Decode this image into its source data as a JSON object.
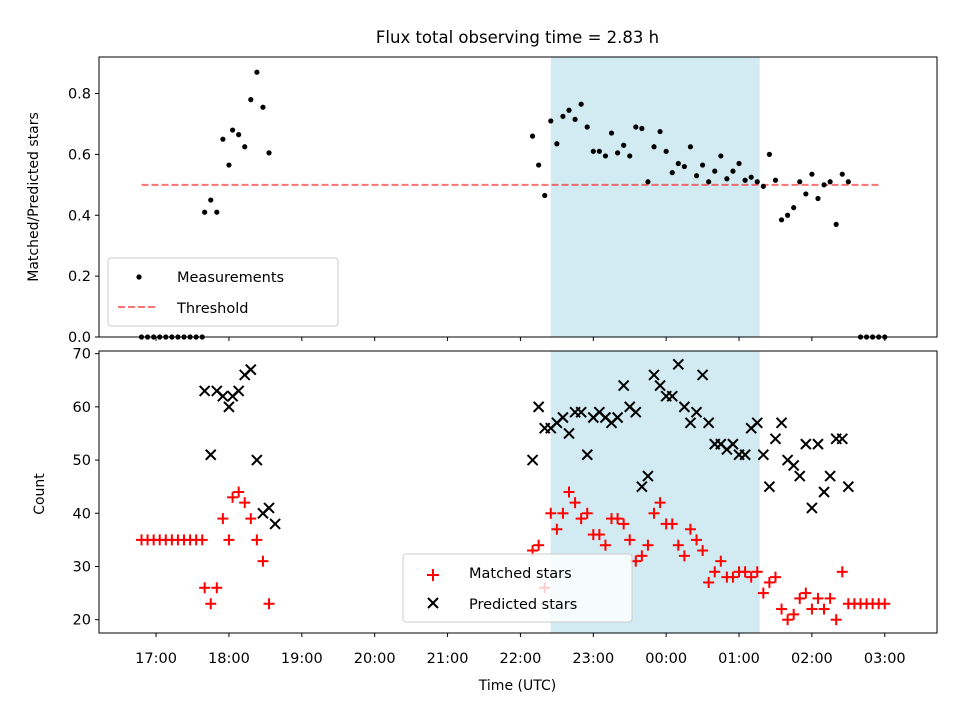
{
  "chart_data": [
    {
      "type": "scatter",
      "title": "Flux total observing time = 2.83 h",
      "xlabel": "",
      "ylabel": "Matched/Predicted stars",
      "xlim": [
        "16:13",
        "03:43"
      ],
      "ylim": [
        0,
        0.92
      ],
      "yticks": [
        "0.0",
        "0.2",
        "0.4",
        "0.6",
        "0.8"
      ],
      "ytick_values": [
        0,
        0.2,
        0.4,
        0.6,
        0.8
      ],
      "grid": false,
      "legend_position": "lower-left",
      "shaded_region": {
        "x_start": "22:25",
        "x_end": "01:17",
        "color": "#add8e6"
      },
      "threshold": {
        "name": "Threshold",
        "value": 0.5,
        "x_start": "16:48",
        "x_end": "02:55",
        "color": "#ff0000",
        "style": "dashed"
      },
      "series": [
        {
          "name": "Measurements",
          "color": "#000000",
          "marker": "dot",
          "points": [
            [
              "16:48",
              0
            ],
            [
              "16:53",
              0
            ],
            [
              "16:58",
              0
            ],
            [
              "17:03",
              0
            ],
            [
              "17:08",
              0
            ],
            [
              "17:13",
              0
            ],
            [
              "17:18",
              0
            ],
            [
              "17:23",
              0
            ],
            [
              "17:28",
              0
            ],
            [
              "17:33",
              0
            ],
            [
              "17:38",
              0
            ],
            [
              "17:40",
              0.41
            ],
            [
              "17:45",
              0.45
            ],
            [
              "17:50",
              0.41
            ],
            [
              "17:55",
              0.65
            ],
            [
              "18:00",
              0.565
            ],
            [
              "18:03",
              0.68
            ],
            [
              "18:08",
              0.665
            ],
            [
              "18:13",
              0.625
            ],
            [
              "18:18",
              0.78
            ],
            [
              "18:23",
              0.87
            ],
            [
              "18:28",
              0.755
            ],
            [
              "18:33",
              0.605
            ],
            [
              "22:10",
              0.66
            ],
            [
              "22:15",
              0.565
            ],
            [
              "22:20",
              0.465
            ],
            [
              "22:25",
              0.71
            ],
            [
              "22:30",
              0.635
            ],
            [
              "22:35",
              0.725
            ],
            [
              "22:40",
              0.745
            ],
            [
              "22:45",
              0.715
            ],
            [
              "22:50",
              0.765
            ],
            [
              "22:55",
              0.69
            ],
            [
              "23:00",
              0.61
            ],
            [
              "23:05",
              0.61
            ],
            [
              "23:10",
              0.595
            ],
            [
              "23:15",
              0.67
            ],
            [
              "23:20",
              0.605
            ],
            [
              "23:25",
              0.63
            ],
            [
              "23:30",
              0.595
            ],
            [
              "23:35",
              0.69
            ],
            [
              "23:40",
              0.685
            ],
            [
              "23:45",
              0.51
            ],
            [
              "23:50",
              0.625
            ],
            [
              "23:55",
              0.675
            ],
            [
              "00:00",
              0.61
            ],
            [
              "00:05",
              0.54
            ],
            [
              "00:10",
              0.57
            ],
            [
              "00:15",
              0.56
            ],
            [
              "00:20",
              0.625
            ],
            [
              "00:25",
              0.53
            ],
            [
              "00:30",
              0.565
            ],
            [
              "00:35",
              0.51
            ],
            [
              "00:40",
              0.545
            ],
            [
              "00:45",
              0.595
            ],
            [
              "00:50",
              0.52
            ],
            [
              "00:55",
              0.545
            ],
            [
              "01:00",
              0.57
            ],
            [
              "01:05",
              0.515
            ],
            [
              "01:10",
              0.525
            ],
            [
              "01:15",
              0.51
            ],
            [
              "01:20",
              0.495
            ],
            [
              "01:25",
              0.6
            ],
            [
              "01:30",
              0.515
            ],
            [
              "01:35",
              0.385
            ],
            [
              "01:40",
              0.4
            ],
            [
              "01:45",
              0.425
            ],
            [
              "01:50",
              0.51
            ],
            [
              "01:55",
              0.47
            ],
            [
              "02:00",
              0.535
            ],
            [
              "02:05",
              0.455
            ],
            [
              "02:10",
              0.5
            ],
            [
              "02:15",
              0.51
            ],
            [
              "02:20",
              0.37
            ],
            [
              "02:25",
              0.535
            ],
            [
              "02:30",
              0.51
            ],
            [
              "02:40",
              0
            ],
            [
              "02:45",
              0
            ],
            [
              "02:50",
              0
            ],
            [
              "02:55",
              0
            ],
            [
              "03:00",
              0
            ]
          ]
        }
      ]
    },
    {
      "type": "scatter",
      "title": "",
      "xlabel": "Time (UTC)",
      "ylabel": "Count",
      "xlim": [
        "16:13",
        "03:43"
      ],
      "ylim": [
        17.5,
        70.5
      ],
      "xticks": [
        "17:00",
        "18:00",
        "19:00",
        "20:00",
        "21:00",
        "22:00",
        "23:00",
        "00:00",
        "01:00",
        "02:00",
        "03:00"
      ],
      "yticks": [
        "20",
        "30",
        "40",
        "50",
        "60",
        "70"
      ],
      "ytick_values": [
        20,
        30,
        40,
        50,
        60,
        70
      ],
      "grid": false,
      "legend_position": "bottom-center",
      "shaded_region": {
        "x_start": "22:25",
        "x_end": "01:17",
        "color": "#add8e6"
      },
      "series": [
        {
          "name": "Matched stars",
          "color": "#ff0000",
          "marker": "plus",
          "points": [
            [
              "16:48",
              35
            ],
            [
              "16:53",
              35
            ],
            [
              "16:58",
              35
            ],
            [
              "17:03",
              35
            ],
            [
              "17:08",
              35
            ],
            [
              "17:13",
              35
            ],
            [
              "17:18",
              35
            ],
            [
              "17:23",
              35
            ],
            [
              "17:28",
              35
            ],
            [
              "17:33",
              35
            ],
            [
              "17:38",
              35
            ],
            [
              "17:40",
              26
            ],
            [
              "17:45",
              23
            ],
            [
              "17:50",
              26
            ],
            [
              "17:55",
              39
            ],
            [
              "18:00",
              35
            ],
            [
              "18:03",
              43
            ],
            [
              "18:08",
              44
            ],
            [
              "18:13",
              42
            ],
            [
              "18:18",
              39
            ],
            [
              "18:23",
              35
            ],
            [
              "18:28",
              31
            ],
            [
              "18:33",
              23
            ],
            [
              "22:10",
              33
            ],
            [
              "22:15",
              34
            ],
            [
              "22:20",
              26
            ],
            [
              "22:25",
              40
            ],
            [
              "22:30",
              37
            ],
            [
              "22:35",
              40
            ],
            [
              "22:40",
              44
            ],
            [
              "22:45",
              42
            ],
            [
              "22:50",
              39
            ],
            [
              "22:55",
              40
            ],
            [
              "23:00",
              36
            ],
            [
              "23:05",
              36
            ],
            [
              "23:10",
              34
            ],
            [
              "23:15",
              39
            ],
            [
              "23:20",
              39
            ],
            [
              "23:25",
              38
            ],
            [
              "23:30",
              35
            ],
            [
              "23:35",
              31
            ],
            [
              "23:40",
              32
            ],
            [
              "23:45",
              34
            ],
            [
              "23:50",
              40
            ],
            [
              "23:55",
              42
            ],
            [
              "00:00",
              38
            ],
            [
              "00:05",
              38
            ],
            [
              "00:10",
              34
            ],
            [
              "00:15",
              32
            ],
            [
              "00:20",
              37
            ],
            [
              "00:25",
              35
            ],
            [
              "00:30",
              33
            ],
            [
              "00:35",
              27
            ],
            [
              "00:40",
              29
            ],
            [
              "00:45",
              31
            ],
            [
              "00:50",
              28
            ],
            [
              "00:55",
              28
            ],
            [
              "01:00",
              29
            ],
            [
              "01:05",
              29
            ],
            [
              "01:10",
              28
            ],
            [
              "01:15",
              29
            ],
            [
              "01:20",
              25
            ],
            [
              "01:25",
              27
            ],
            [
              "01:30",
              28
            ],
            [
              "01:35",
              22
            ],
            [
              "01:40",
              20
            ],
            [
              "01:45",
              21
            ],
            [
              "01:50",
              24
            ],
            [
              "01:55",
              25
            ],
            [
              "02:00",
              22
            ],
            [
              "02:05",
              24
            ],
            [
              "02:10",
              22
            ],
            [
              "02:15",
              24
            ],
            [
              "02:20",
              20
            ],
            [
              "02:25",
              29
            ],
            [
              "02:30",
              23
            ],
            [
              "02:35",
              23
            ],
            [
              "02:40",
              23
            ],
            [
              "02:45",
              23
            ],
            [
              "02:50",
              23
            ],
            [
              "02:55",
              23
            ],
            [
              "03:00",
              23
            ]
          ]
        },
        {
          "name": "Predicted stars",
          "color": "#000000",
          "marker": "x",
          "points": [
            [
              "17:40",
              63
            ],
            [
              "17:45",
              51
            ],
            [
              "17:50",
              63
            ],
            [
              "17:55",
              62
            ],
            [
              "18:00",
              60
            ],
            [
              "18:03",
              62
            ],
            [
              "18:08",
              63
            ],
            [
              "18:13",
              66
            ],
            [
              "18:18",
              67
            ],
            [
              "18:23",
              50
            ],
            [
              "18:28",
              40
            ],
            [
              "18:33",
              41
            ],
            [
              "18:38",
              38
            ],
            [
              "22:10",
              50
            ],
            [
              "22:15",
              60
            ],
            [
              "22:20",
              56
            ],
            [
              "22:25",
              56
            ],
            [
              "22:30",
              57
            ],
            [
              "22:35",
              58
            ],
            [
              "22:40",
              55
            ],
            [
              "22:45",
              59
            ],
            [
              "22:50",
              59
            ],
            [
              "22:55",
              51
            ],
            [
              "23:00",
              58
            ],
            [
              "23:05",
              59
            ],
            [
              "23:10",
              58
            ],
            [
              "23:15",
              57
            ],
            [
              "23:20",
              58
            ],
            [
              "23:25",
              64
            ],
            [
              "23:30",
              60
            ],
            [
              "23:35",
              59
            ],
            [
              "23:40",
              45
            ],
            [
              "23:45",
              47
            ],
            [
              "23:50",
              66
            ],
            [
              "23:55",
              64
            ],
            [
              "00:00",
              62
            ],
            [
              "00:05",
              62
            ],
            [
              "00:10",
              68
            ],
            [
              "00:15",
              60
            ],
            [
              "00:20",
              57
            ],
            [
              "00:25",
              59
            ],
            [
              "00:30",
              66
            ],
            [
              "00:35",
              57
            ],
            [
              "00:40",
              53
            ],
            [
              "00:45",
              53
            ],
            [
              "00:50",
              52
            ],
            [
              "00:55",
              53
            ],
            [
              "01:00",
              51
            ],
            [
              "01:05",
              51
            ],
            [
              "01:10",
              56
            ],
            [
              "01:15",
              57
            ],
            [
              "01:20",
              51
            ],
            [
              "01:25",
              45
            ],
            [
              "01:30",
              54
            ],
            [
              "01:35",
              57
            ],
            [
              "01:40",
              50
            ],
            [
              "01:45",
              49
            ],
            [
              "01:50",
              47
            ],
            [
              "01:55",
              53
            ],
            [
              "02:00",
              41
            ],
            [
              "02:05",
              53
            ],
            [
              "02:10",
              44
            ],
            [
              "02:15",
              47
            ],
            [
              "02:20",
              54
            ],
            [
              "02:25",
              54
            ],
            [
              "02:30",
              45
            ]
          ]
        }
      ]
    }
  ]
}
